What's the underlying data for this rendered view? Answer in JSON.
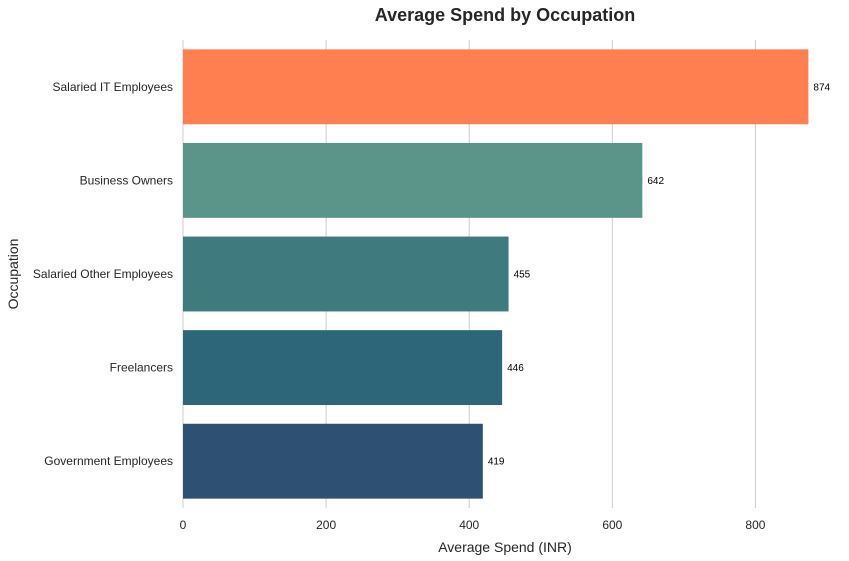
{
  "chart_data": {
    "type": "bar",
    "orientation": "horizontal",
    "title": "Average Spend by Occupation",
    "xlabel": "Average Spend (INR)",
    "ylabel": "Occupation",
    "xlim": [
      0,
      900
    ],
    "xticks": [
      0,
      200,
      400,
      600,
      800
    ],
    "grid": "vertical",
    "categories": [
      "Salaried IT Employees",
      "Business Owners",
      "Salaried Other Employees",
      "Freelancers",
      "Government Employees"
    ],
    "values": [
      874,
      642,
      455,
      446,
      419
    ],
    "data_labels": [
      "874",
      "642",
      "455",
      "446",
      "419"
    ],
    "colors": [
      "#FF7F50",
      "#5B958A",
      "#3F7A7E",
      "#2E6679",
      "#2E5072"
    ]
  }
}
